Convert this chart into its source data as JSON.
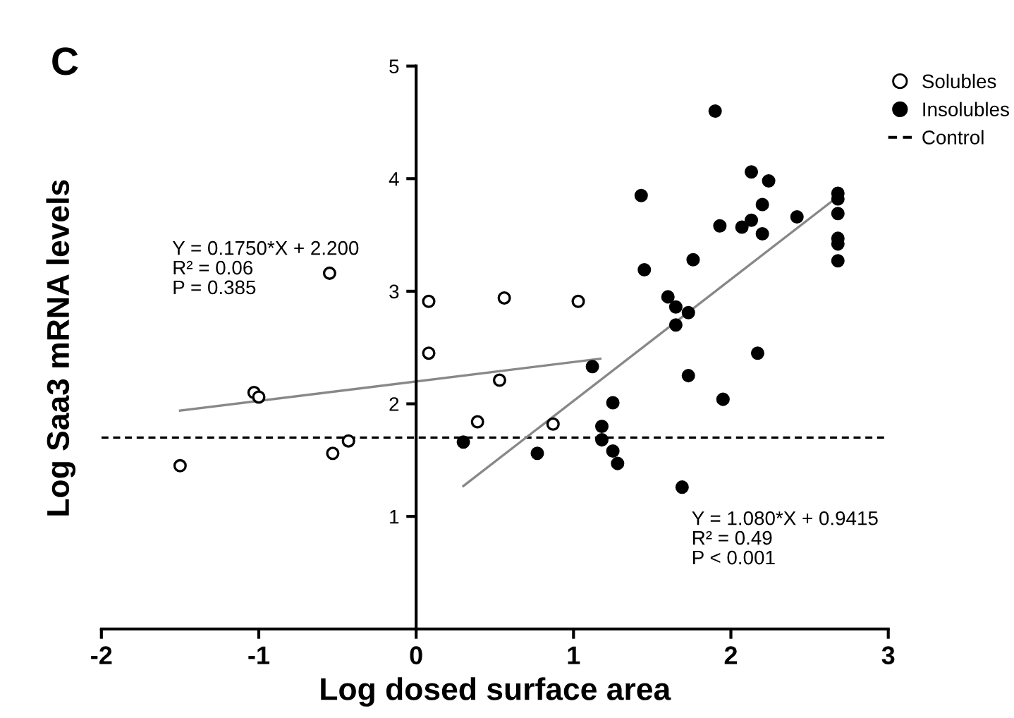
{
  "chart_data": {
    "type": "scatter",
    "title": "C",
    "xlabel": "Log dosed surface area",
    "ylabel": "Log Saa3 mRNA levels",
    "xlim": [
      -2,
      3
    ],
    "xticks": [
      -2,
      -1,
      0,
      1,
      2,
      3
    ],
    "ylim": [
      0,
      5
    ],
    "yticks": [
      1,
      2,
      3,
      4,
      5
    ],
    "grid": false,
    "legend": "top right",
    "marker": "circle",
    "series": [
      {
        "name": "Solubles",
        "color": "#ffffff",
        "x": [
          -1.5,
          -1.03,
          -1.0,
          -0.55,
          -0.53,
          -0.43,
          0.08,
          0.08,
          0.39,
          0.53,
          0.56,
          0.87,
          1.03
        ],
        "values": [
          1.45,
          2.1,
          2.06,
          3.16,
          1.56,
          1.67,
          2.91,
          2.45,
          1.84,
          2.21,
          2.94,
          1.82,
          2.91
        ]
      },
      {
        "name": "Insolubles",
        "color": "#000000",
        "x": [
          0.3,
          0.77,
          1.12,
          1.18,
          1.18,
          1.25,
          1.25,
          1.28,
          1.43,
          1.45,
          1.6,
          1.65,
          1.65,
          1.69,
          1.73,
          1.73,
          1.76,
          1.9,
          1.93,
          1.95,
          2.07,
          2.13,
          2.13,
          2.17,
          2.2,
          2.2,
          2.24,
          2.42,
          2.68,
          2.68,
          2.68,
          2.68,
          2.68,
          2.68
        ],
        "values": [
          1.66,
          1.56,
          2.33,
          1.8,
          1.68,
          2.01,
          1.58,
          1.47,
          3.85,
          3.19,
          2.95,
          2.86,
          2.7,
          1.26,
          2.81,
          2.25,
          3.28,
          4.6,
          3.58,
          2.04,
          3.57,
          3.63,
          4.06,
          2.45,
          3.77,
          3.51,
          3.98,
          3.66,
          3.87,
          3.82,
          3.69,
          3.47,
          3.42,
          3.27
        ]
      },
      {
        "type": "line",
        "color": "#888888",
        "marker": "none",
        "x": [
          -1.5,
          1.17
        ],
        "values": [
          1.94,
          2.4
        ]
      },
      {
        "type": "line",
        "color": "#888888",
        "marker": "none",
        "x": [
          0.3,
          2.68
        ],
        "values": [
          1.27,
          3.84
        ]
      }
    ],
    "ref_lines": [
      {
        "axis": "y",
        "value": 1.7,
        "label": "Control",
        "color": "#000000",
        "line_style": "dashed"
      }
    ],
    "annotations": [
      "Y = 0.1750*X + 2.200\nR² = 0.06\nP = 0.385",
      "Y = 1.080*X + 0.9415\nR² = 0.49\nP < 0.001"
    ]
  }
}
